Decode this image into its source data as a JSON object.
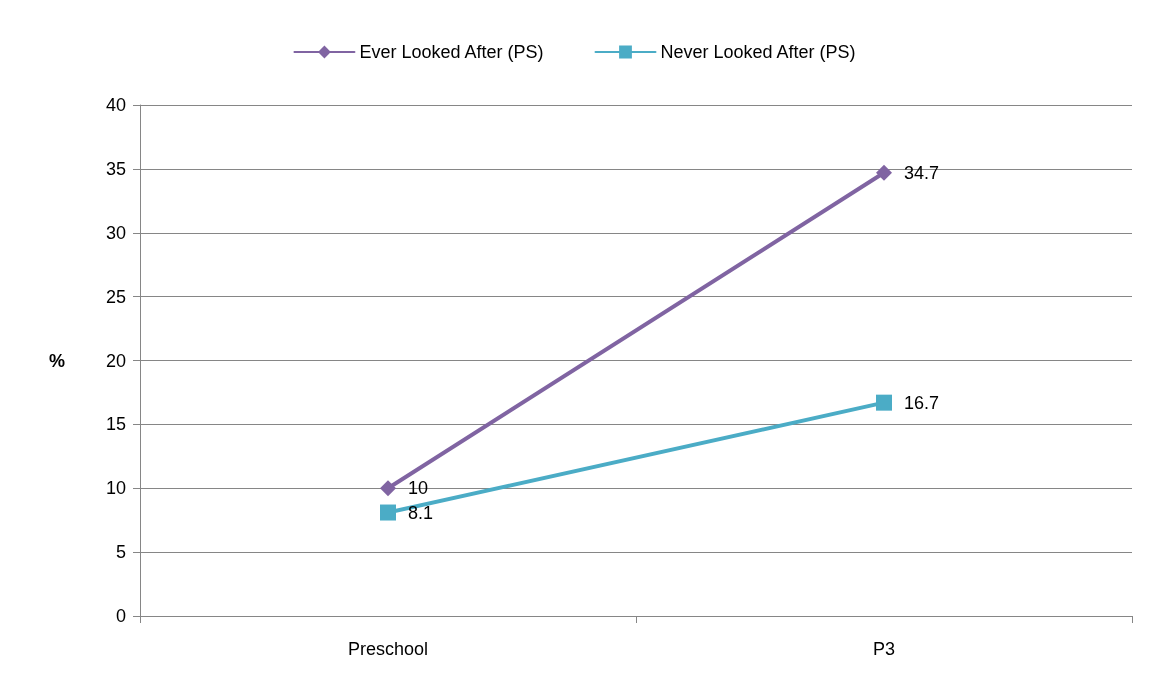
{
  "chart_data": {
    "type": "line",
    "ylabel": "%",
    "categories": [
      "Preschool",
      "P3"
    ],
    "series": [
      {
        "name": "Ever Looked After (PS)",
        "color": "#8064a2",
        "values": [
          10,
          34.7
        ],
        "marker": "diamond"
      },
      {
        "name": "Never Looked After (PS)",
        "color": "#4bacc6",
        "values": [
          8.1,
          16.7
        ],
        "marker": "square"
      }
    ],
    "ylim": [
      0,
      40
    ],
    "yticks": [
      0,
      5,
      10,
      15,
      20,
      25,
      30,
      35,
      40
    ],
    "grid": "y",
    "legend": "top",
    "data_labels": true,
    "line_style": "solid"
  }
}
